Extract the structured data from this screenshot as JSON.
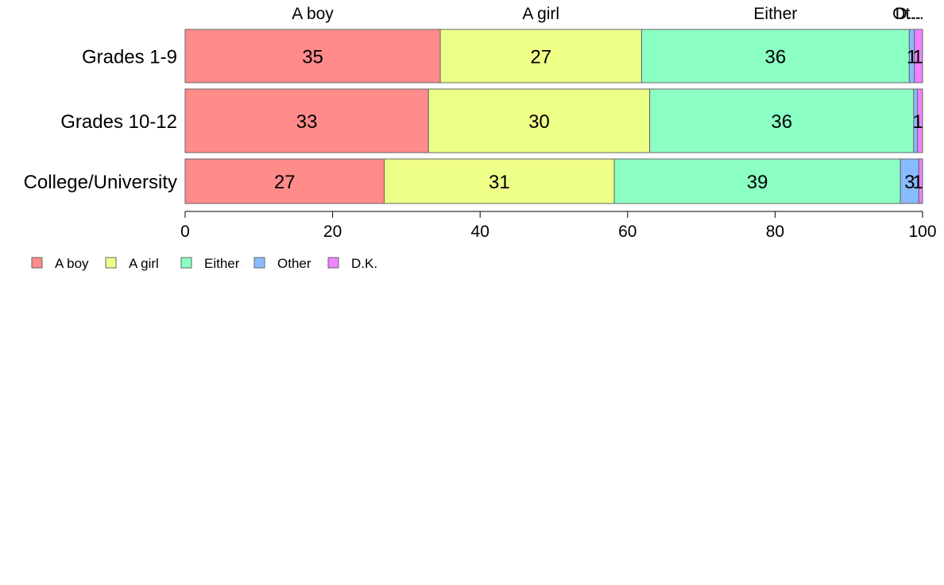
{
  "chart_data": {
    "type": "bar",
    "orientation": "horizontal",
    "stacked": true,
    "categories": [
      "Grades 1-9",
      "Grades 10-12",
      "College/University"
    ],
    "series": [
      {
        "name": "A boy",
        "color": "#FF8B8B",
        "values": [
          34.6,
          33.0,
          27.0
        ],
        "labels": [
          "35",
          "33",
          "27"
        ]
      },
      {
        "name": "A girl",
        "color": "#EEFF88",
        "values": [
          27.3,
          30.0,
          31.2
        ],
        "labels": [
          "27",
          "30",
          "31"
        ]
      },
      {
        "name": "Either",
        "color": "#8BFFC4",
        "values": [
          36.3,
          35.8,
          38.8
        ],
        "labels": [
          "36",
          "36",
          "39"
        ]
      },
      {
        "name": "Other",
        "color": "#88BBFF",
        "values": [
          0.7,
          0.5,
          2.5
        ],
        "labels": [
          "1",
          "",
          "3"
        ]
      },
      {
        "name": "D.K.",
        "color": "#EE82FF",
        "values": [
          1.1,
          0.7,
          0.5
        ],
        "labels": [
          "1",
          "1",
          "1"
        ]
      }
    ],
    "top_labels": [
      "A boy",
      "A girl",
      "Either",
      "Ot...",
      "D..."
    ],
    "x_ticks": [
      0,
      20,
      40,
      60,
      80,
      100
    ],
    "xlim": [
      0,
      100
    ],
    "xlabel": "",
    "ylabel": "",
    "title": "",
    "legend_position": "bottom-left",
    "grid": false
  }
}
